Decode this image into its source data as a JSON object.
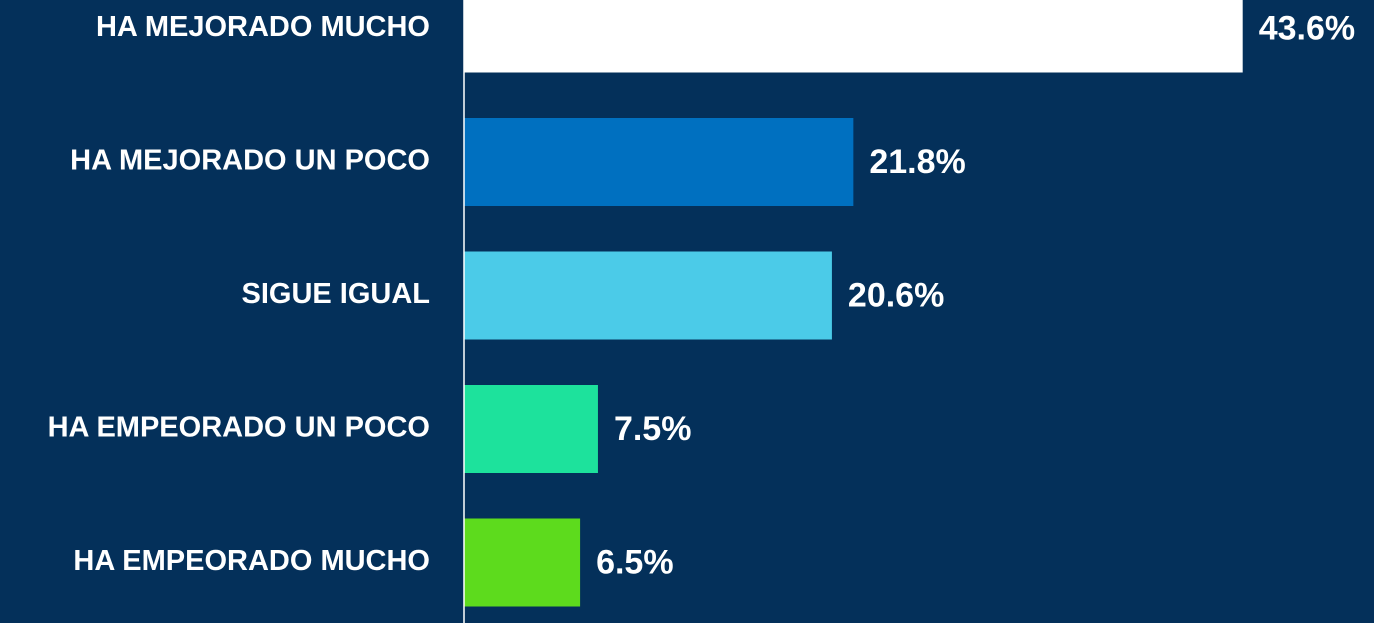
{
  "chart_data": {
    "type": "barh",
    "categories": [
      "HA MEJORADO MUCHO",
      "HA MEJORADO UN POCO",
      "SIGUE IGUAL",
      "HA EMPEORADO UN POCO",
      "HA EMPEORADO MUCHO"
    ],
    "values": [
      43.6,
      21.8,
      20.6,
      7.5,
      6.5
    ],
    "value_labels": [
      "43.6%",
      "21.8%",
      "20.6%",
      "7.5%",
      "6.5%"
    ],
    "colors": [
      "#ffffff",
      "#0070c0",
      "#4bcbe8",
      "#1de29c",
      "#5ddb1d"
    ],
    "xlim": [
      0,
      50
    ]
  }
}
